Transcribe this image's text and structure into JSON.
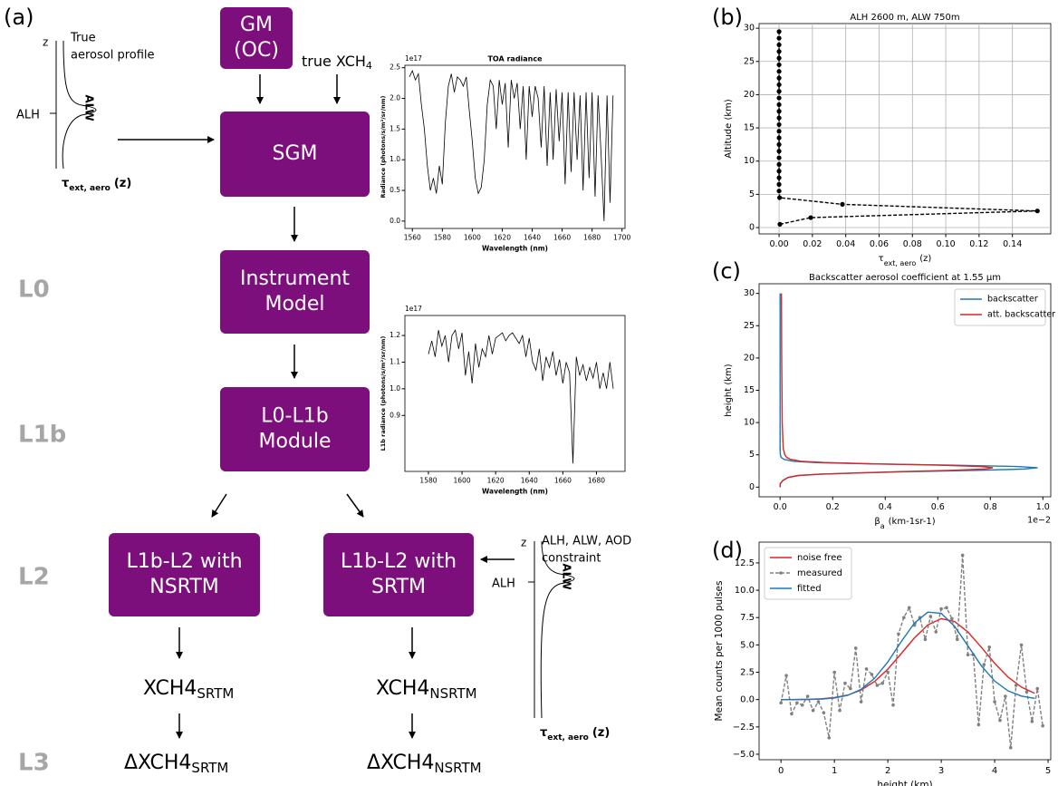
{
  "diagram": {
    "panel_labels": [
      "(a)",
      "(b)",
      "(c)",
      "(d)"
    ],
    "levels": [
      "L0",
      "L1b",
      "L2",
      "L3"
    ],
    "boxes": [
      [
        "GM",
        "(OC)"
      ],
      [
        "SGM"
      ],
      [
        "Instrument",
        "Model"
      ],
      [
        "L0-L1b",
        "Module"
      ],
      [
        "L1b-L2 with",
        "NSRTM"
      ],
      [
        "L1b-L2  with",
        "SRTM"
      ]
    ],
    "true_xch4": {
      "main": "true XCH",
      "sub": "4"
    },
    "outputs": [
      {
        "main": "XCH4",
        "sub": "SRTM"
      },
      {
        "main": "XCH4",
        "sub": "NSRTM"
      },
      {
        "main": "ΔXCH4",
        "sub": "SRTM"
      },
      {
        "main": "ΔXCH4",
        "sub": "NSRTM"
      }
    ],
    "profile_true": {
      "z": "z",
      "caption": [
        "True",
        "aerosol profile"
      ],
      "alh": "ALH",
      "alw": "ALW",
      "tau": {
        "main": "τ",
        "sub": "ext, aero",
        "tail": "(z)"
      }
    },
    "profile_constraint": {
      "z": "z",
      "caption": [
        "ALH, ALW, AOD",
        "constraint"
      ],
      "alh": "ALH",
      "alw": "ALW",
      "tau": {
        "main": "τ",
        "sub": "ext, aero",
        "tail": "(z)"
      }
    }
  },
  "chart_data": [
    {
      "type": "line",
      "title": "TOA radiance",
      "offset_text": "1e17",
      "xlabel": "Wavelength (nm)",
      "ylabel": "Radiance (photons/s/m²/sr/nm)",
      "xlim": [
        1555,
        1702
      ],
      "ylim": [
        -0.12,
        2.54
      ],
      "xticks": [
        1560,
        1580,
        1600,
        1620,
        1640,
        1660,
        1680,
        1700
      ],
      "yticks": [
        {
          "value": 0,
          "label": "0.0"
        },
        0.5,
        {
          "value": 1,
          "label": "1.0"
        },
        1.5,
        {
          "value": 2,
          "label": "2.0"
        },
        2.5
      ],
      "grid": false,
      "series": [
        {
          "color": "#000000",
          "x": [
            1558,
            1560,
            1562,
            1564,
            1566,
            1568,
            1570,
            1572,
            1574,
            1576,
            1578,
            1580,
            1582,
            1584,
            1586,
            1588,
            1590,
            1592,
            1594,
            1596,
            1598,
            1600,
            1602,
            1604,
            1606,
            1608,
            1610,
            1612,
            1614,
            1616,
            1618,
            1620,
            1622,
            1624,
            1626,
            1628,
            1630,
            1632,
            1634,
            1636,
            1638,
            1640,
            1642,
            1644,
            1646,
            1648,
            1650,
            1652,
            1654,
            1656,
            1658,
            1660,
            1662,
            1664,
            1666,
            1668,
            1670,
            1672,
            1674,
            1676,
            1678,
            1680,
            1682,
            1684,
            1686,
            1688,
            1690,
            1692,
            1694
          ],
          "values": [
            2.35,
            2.45,
            2.3,
            2.4,
            1.9,
            1.5,
            0.9,
            0.5,
            0.7,
            0.45,
            0.9,
            0.6,
            1.6,
            2.2,
            2.4,
            2.1,
            2.35,
            2.3,
            2.2,
            2.35,
            1.8,
            1.3,
            0.7,
            0.45,
            0.55,
            1.0,
            1.9,
            2.3,
            2.2,
            1.5,
            2.3,
            1.9,
            2.25,
            1.2,
            2.3,
            2.0,
            2.25,
            1.5,
            2.2,
            1.0,
            2.2,
            1.7,
            2.2,
            2.0,
            1.2,
            2.2,
            0.9,
            2.1,
            1.0,
            2.15,
            1.3,
            2.1,
            0.6,
            2.1,
            0.8,
            2.1,
            1.0,
            2.05,
            0.5,
            2.1,
            0.7,
            2.1,
            0.4,
            2.05,
            1.1,
            0.0,
            2.05,
            0.3,
            2.05
          ]
        }
      ]
    },
    {
      "type": "line",
      "offset_text": "1e17",
      "xlabel": "Wavelength (nm)",
      "ylabel": "L1b radiance (photons/s/m²/sr/nm)",
      "xlim": [
        1566,
        1697
      ],
      "ylim": [
        0.69,
        1.275
      ],
      "xticks": [
        1580,
        1600,
        1620,
        1640,
        1660,
        1680
      ],
      "yticks": [
        0.9,
        {
          "value": 1,
          "label": "1.0"
        },
        1.1,
        1.2
      ],
      "grid": false,
      "series": [
        {
          "color": "#000000",
          "x": [
            1580,
            1582,
            1584,
            1586,
            1588,
            1590,
            1592,
            1594,
            1596,
            1598,
            1600,
            1602,
            1604,
            1606,
            1608,
            1610,
            1612,
            1614,
            1616,
            1618,
            1620,
            1622,
            1624,
            1626,
            1628,
            1630,
            1632,
            1634,
            1636,
            1638,
            1640,
            1642,
            1644,
            1646,
            1648,
            1650,
            1652,
            1654,
            1656,
            1658,
            1660,
            1662,
            1664,
            1666,
            1668,
            1670,
            1672,
            1674,
            1676,
            1678,
            1680,
            1682,
            1684,
            1686,
            1688,
            1690
          ],
          "values": [
            1.13,
            1.18,
            1.12,
            1.22,
            1.16,
            1.2,
            1.1,
            1.2,
            1.22,
            1.15,
            1.21,
            1.05,
            1.14,
            1.02,
            1.17,
            1.08,
            1.15,
            1.12,
            1.2,
            1.13,
            1.19,
            1.2,
            1.21,
            1.18,
            1.2,
            1.21,
            1.19,
            1.17,
            1.2,
            1.12,
            1.19,
            1.1,
            1.07,
            1.15,
            1.03,
            1.12,
            1.08,
            1.14,
            1.05,
            1.11,
            1.02,
            1.1,
            1.06,
            0.72,
            1.12,
            1.05,
            1.09,
            1.03,
            1.08,
            1.04,
            1.1,
            1.0,
            1.06,
            1.0,
            1.1,
            1.0
          ]
        }
      ]
    },
    {
      "type": "line",
      "title": "ALH 2600 m, ALW 750m",
      "xlabel": {
        "main": "τ",
        "sub": "ext, aero",
        "tail": "(z)"
      },
      "ylabel": "Altitude (km)",
      "xlim": [
        -0.012,
        0.163
      ],
      "ylim": [
        -0.95,
        30.7
      ],
      "xticks": [
        {
          "value": 0,
          "label": "0.00"
        },
        0.02,
        0.04,
        0.06,
        0.08,
        {
          "value": 0.1,
          "label": "0.10"
        },
        0.12,
        0.14
      ],
      "yticks": [
        0,
        5,
        10,
        15,
        20,
        25,
        30
      ],
      "grid": true,
      "series": [
        {
          "color": "#000000",
          "line_style": "dashed",
          "marker": "o",
          "x": [
            0.0005,
            0.019,
            0.155,
            0.038,
            0.0003,
            0,
            0,
            0,
            0,
            0,
            0,
            0,
            0,
            0,
            0,
            0,
            0,
            0,
            0,
            0,
            0,
            0,
            0,
            0,
            0,
            0,
            0,
            0,
            0,
            0
          ],
          "values": [
            0.5,
            1.5,
            2.5,
            3.5,
            4.5,
            5.5,
            6.5,
            7.5,
            8.5,
            9.5,
            10.5,
            11.5,
            12.5,
            13.5,
            14.5,
            15.5,
            16.5,
            17.5,
            18.5,
            19.5,
            20.5,
            21.5,
            22.5,
            23.5,
            24.5,
            25.5,
            26.5,
            27.5,
            28.5,
            29.5
          ]
        }
      ]
    },
    {
      "type": "line",
      "title": "Backscatter aerosol coefficient at 1.55 µm",
      "offset_text": "1e−2",
      "xlabel": {
        "main": "β",
        "sub": "a",
        "tail": "(km-1sr-1)"
      },
      "ylabel": "height (km)",
      "xlim": [
        -0.08,
        1.03
      ],
      "ylim": [
        -1.5,
        31.5
      ],
      "xticks": [
        {
          "value": 0,
          "label": "0.0"
        },
        0.2,
        0.4,
        0.6,
        0.8,
        {
          "value": 1,
          "label": "1.0"
        }
      ],
      "yticks": [
        0,
        5,
        10,
        15,
        20,
        25,
        30
      ],
      "grid": false,
      "legend": "upper right",
      "series": [
        {
          "name": "backscatter",
          "color": "#1f77b4",
          "x": [
            0,
            0,
            0.01,
            0.03,
            0.07,
            0.15,
            0.3,
            0.5,
            0.75,
            0.93,
            0.98,
            0.9,
            0.65,
            0.35,
            0.14,
            0.05,
            0.015,
            0.004,
            0.001,
            0,
            0,
            0,
            0
          ],
          "values": [
            0,
            0.5,
            1,
            1.5,
            1.8,
            2.0,
            2.2,
            2.4,
            2.6,
            2.8,
            3.0,
            3.2,
            3.4,
            3.6,
            3.8,
            4.0,
            4.3,
            4.6,
            5,
            6,
            10,
            20,
            30
          ]
        },
        {
          "name": "att. backscatter",
          "color": "#d62728",
          "x": [
            0,
            0,
            0.01,
            0.03,
            0.07,
            0.15,
            0.29,
            0.46,
            0.65,
            0.78,
            0.81,
            0.76,
            0.6,
            0.36,
            0.17,
            0.08,
            0.04,
            0.025,
            0.018,
            0.012,
            0.008,
            0.006,
            0.005
          ],
          "values": [
            0,
            0.5,
            1,
            1.5,
            1.8,
            2.0,
            2.2,
            2.4,
            2.6,
            2.8,
            3.0,
            3.2,
            3.4,
            3.6,
            3.8,
            4.0,
            4.3,
            4.6,
            5,
            6,
            10,
            20,
            30
          ]
        }
      ]
    },
    {
      "type": "line",
      "xlabel": "height (km)",
      "ylabel": "Mean counts per 1000 pulses",
      "xlim": [
        -0.41,
        5.05
      ],
      "ylim": [
        -5.5,
        14.4
      ],
      "xticks": [
        0,
        1,
        2,
        3,
        4,
        5
      ],
      "yticks": [
        {
          "value": -5,
          "label": "−5.0"
        },
        {
          "value": -2.5,
          "label": "−2.5"
        },
        {
          "value": 0,
          "label": "0.0"
        },
        2.5,
        {
          "value": 5,
          "label": "5.0"
        },
        7.5,
        {
          "value": 10,
          "label": "10.0"
        },
        12.5
      ],
      "grid": false,
      "legend": "upper left",
      "series": [
        {
          "name": "noise free",
          "color": "#e32222",
          "x": [
            0,
            0.25,
            0.5,
            0.75,
            1,
            1.25,
            1.5,
            1.75,
            2,
            2.25,
            2.5,
            2.75,
            3,
            3.25,
            3.5,
            3.75,
            4,
            4.25,
            4.5,
            4.75
          ],
          "values": [
            0,
            0.01,
            0.02,
            0.07,
            0.18,
            0.41,
            0.87,
            1.65,
            2.78,
            4.19,
            5.65,
            6.83,
            7.4,
            7.14,
            6.18,
            4.79,
            3.32,
            2.06,
            1.14,
            0.57
          ]
        },
        {
          "name": "measured",
          "color": "#808080",
          "line_style": "dashed",
          "marker": "o",
          "x": [
            0,
            0.1,
            0.2,
            0.3,
            0.4,
            0.5,
            0.6,
            0.7,
            0.8,
            0.9,
            1,
            1.1,
            1.2,
            1.3,
            1.4,
            1.5,
            1.6,
            1.7,
            1.8,
            1.9,
            2,
            2.1,
            2.2,
            2.3,
            2.4,
            2.5,
            2.6,
            2.7,
            2.8,
            2.9,
            3,
            3.1,
            3.2,
            3.3,
            3.4,
            3.5,
            3.6,
            3.7,
            3.8,
            3.9,
            4,
            4.1,
            4.2,
            4.3,
            4.4,
            4.5,
            4.6,
            4.7,
            4.8,
            4.9
          ],
          "values": [
            -0.3,
            2.2,
            -1.3,
            -0.3,
            -0.5,
            0.3,
            -1.0,
            -0.2,
            -1.2,
            -3.5,
            2.5,
            -1.0,
            1.5,
            1.0,
            4.7,
            -0.2,
            2.8,
            2.3,
            1.3,
            1.5,
            2.5,
            -0.5,
            6.0,
            7.5,
            8.4,
            6.8,
            7.5,
            5.5,
            7.6,
            6.2,
            8.3,
            8.4,
            7.4,
            5.5,
            13.2,
            4.1,
            4.1,
            -2.3,
            3.2,
            4.8,
            -0.2,
            -1.9,
            0.3,
            -4.4,
            1.3,
            5.0,
            0.7,
            -2.0,
            1.0,
            -2.4
          ]
        },
        {
          "name": "fitted",
          "color": "#1f77b4",
          "x": [
            0,
            0.25,
            0.5,
            0.75,
            1,
            1.25,
            1.5,
            1.75,
            2,
            2.25,
            2.5,
            2.75,
            3,
            3.25,
            3.5,
            3.75,
            4,
            4.25,
            4.5,
            4.75
          ],
          "values": [
            0,
            0,
            0.01,
            0.04,
            0.14,
            0.39,
            0.94,
            1.94,
            3.44,
            5.29,
            7.01,
            8,
            7.89,
            6.7,
            4.91,
            3.1,
            1.69,
            0.8,
            0.32,
            0.11
          ]
        }
      ]
    }
  ]
}
